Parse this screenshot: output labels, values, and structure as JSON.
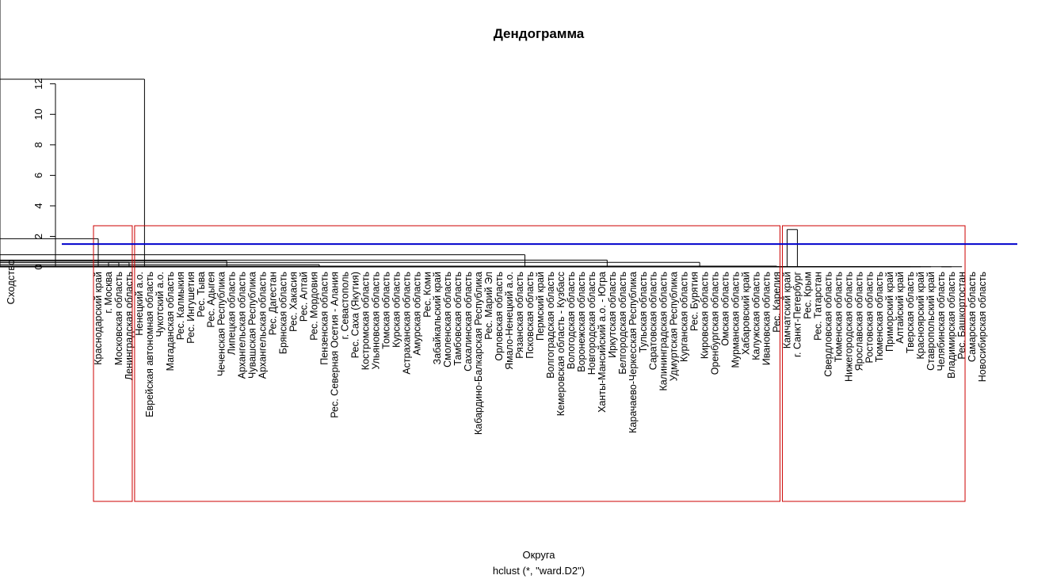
{
  "chart_data": {
    "type": "dendrogram",
    "title": "Дендограмма",
    "xlabel": "Округа",
    "subtitle": "hclust (*, \"ward.D2\")",
    "ylabel": "Сходство",
    "ylim": [
      0,
      13
    ],
    "yticks": [
      0,
      2,
      4,
      6,
      8,
      10,
      12
    ],
    "cut_height": 1.5,
    "cut_line_color": "#0000cc",
    "cluster_box_color": "#cc0000",
    "clusters": [
      {
        "first": 0,
        "last": 3
      },
      {
        "first": 4,
        "last": 66
      },
      {
        "first": 67,
        "last": 84
      }
    ],
    "leaves": [
      "Краснодарский край",
      "г. Москва",
      "Московская область",
      "Ленинградская область",
      "Ненецкий а.о.",
      "Еврейская автономная область",
      "Чукотский а.о.",
      "Магаданская область",
      "Рес. Калмыкия",
      "Рес. Ингушетия",
      "Рес. Тыва",
      "Рес. Адыгея",
      "Чеченская Республика",
      "Липецкая область",
      "Архангельская область",
      "Чувашская Республика",
      "Архангельская область",
      "Рес. Дагестан",
      "Брянская область",
      "Рес. Хакасия",
      "Рес. Алтай",
      "Рес. Мордовия",
      "Пензенская область",
      "Рес. Северная Осетия - Алания",
      "г. Севастополь",
      "Рес. Саха (Якутия)",
      "Костромская область",
      "Ульяновская область",
      "Томская область",
      "Курская область",
      "Астраханская область",
      "Амурская область",
      "Рес. Коми",
      "Забайкальский край",
      "Смоленская область",
      "Тамбовская область",
      "Сахалинская область",
      "Кабардино-Балкарская Республика",
      "Рес. Марий Эл",
      "Орловская область",
      "Ямало-Ненецкий а.о.",
      "Рязанская область",
      "Псковская область",
      "Пермский край",
      "Волгоградская область",
      "Кемеровская область - Кузбасс",
      "Вологодская область",
      "Воронежская область",
      "Новгородская область",
      "Ханты-Мансийский а.о. - Югра",
      "Иркутская область",
      "Белгородская область",
      "Карачаево-Черкесская Республика",
      "Тульская область",
      "Саратовская область",
      "Калининградская область",
      "Удмуртская Республика",
      "Курганская область",
      "Рес. Бурятия",
      "Кировская область",
      "Оренбургская область",
      "Омская область",
      "Мурманская область",
      "Хабаровский край",
      "Калужская область",
      "Ивановская область",
      "Рес. Карелия",
      "Камчатский край",
      "г. Санкт-Петербург",
      "Рес. Крым",
      "Рес. Татарстан",
      "Свердловская область",
      "Тюменская область",
      "Нижегородская область",
      "Ярославская область",
      "Ростовская область",
      "Тюменская область",
      "Приморский край",
      "Алтайский край",
      "Тверская область",
      "Красноярский край",
      "Ставропольский край",
      "Челябинская область",
      "Владимирская область",
      "Рес. Башкортостан",
      "Самарская область",
      "Новосибирская область"
    ],
    "merges": [
      [
        1,
        2,
        0.3
      ],
      [
        3,
        88,
        0.3
      ],
      [
        0,
        89,
        1.85
      ],
      [
        4,
        5,
        0.01
      ],
      [
        91,
        6,
        0.01
      ],
      [
        92,
        7,
        0.01
      ],
      [
        93,
        8,
        0.01
      ],
      [
        94,
        9,
        0.01
      ],
      [
        95,
        10,
        0.01
      ],
      [
        96,
        11,
        0.01
      ],
      [
        12,
        13,
        0.01
      ],
      [
        98,
        14,
        0.01
      ],
      [
        99,
        15,
        0.01
      ],
      [
        100,
        16,
        0.01
      ],
      [
        101,
        17,
        0.01
      ],
      [
        102,
        18,
        0.01
      ],
      [
        103,
        19,
        0.01
      ],
      [
        104,
        20,
        0.01
      ],
      [
        21,
        22,
        0.01
      ],
      [
        106,
        23,
        0.01
      ],
      [
        107,
        24,
        0.05
      ],
      [
        108,
        25,
        0.05
      ],
      [
        109,
        26,
        0.05
      ],
      [
        110,
        27,
        0.05
      ],
      [
        111,
        28,
        0.05
      ],
      [
        112,
        29,
        0.05
      ],
      [
        113,
        30,
        0.05
      ],
      [
        114,
        31,
        0.05
      ],
      [
        115,
        32,
        0.05
      ],
      [
        116,
        33,
        0.05
      ],
      [
        117,
        34,
        0.05
      ],
      [
        118,
        35,
        0.05
      ],
      [
        119,
        36,
        0.05
      ],
      [
        120,
        37,
        0.05
      ],
      [
        121,
        38,
        0.05
      ],
      [
        122,
        39,
        0.05
      ],
      [
        123,
        40,
        0.05
      ],
      [
        105,
        124,
        0.15
      ],
      [
        97,
        125,
        0.4
      ],
      [
        41,
        42,
        0.01
      ],
      [
        127,
        43,
        0.01
      ],
      [
        128,
        44,
        0.05
      ],
      [
        129,
        45,
        0.05
      ],
      [
        130,
        46,
        0.05
      ],
      [
        131,
        47,
        0.05
      ],
      [
        132,
        48,
        0.05
      ],
      [
        49,
        50,
        0.01
      ],
      [
        134,
        51,
        0.01
      ],
      [
        135,
        52,
        0.01
      ],
      [
        136,
        53,
        0.01
      ],
      [
        137,
        54,
        0.01
      ],
      [
        138,
        55,
        0.01
      ],
      [
        139,
        56,
        0.01
      ],
      [
        140,
        57,
        0.01
      ],
      [
        58,
        59,
        0.01
      ],
      [
        142,
        60,
        0.01
      ],
      [
        143,
        61,
        0.05
      ],
      [
        144,
        62,
        0.05
      ],
      [
        145,
        63,
        0.05
      ],
      [
        146,
        64,
        0.05
      ],
      [
        147,
        65,
        0.05
      ],
      [
        148,
        66,
        0.05
      ],
      [
        141,
        149,
        0.3
      ],
      [
        133,
        150,
        0.45
      ],
      [
        151,
        152,
        0.8
      ],
      [
        126,
        152,
        0.8
      ],
      [
        67,
        68,
        2.45
      ],
      [
        69,
        70,
        0.01
      ],
      [
        156,
        71,
        0.01
      ],
      [
        157,
        72,
        0.01
      ],
      [
        73,
        74,
        0.01
      ],
      [
        159,
        75,
        0.01
      ],
      [
        160,
        76,
        0.01
      ],
      [
        77,
        78,
        0.01
      ],
      [
        162,
        79,
        0.01
      ],
      [
        163,
        80,
        0.01
      ],
      [
        164,
        81,
        0.01
      ],
      [
        82,
        83,
        0.01
      ],
      [
        166,
        84,
        0.01
      ],
      [
        158,
        161,
        0.2
      ],
      [
        165,
        167,
        0.4
      ],
      [
        168,
        169,
        0.45
      ],
      [
        170,
        155,
        1.15
      ],
      [
        171,
        155,
        1.15
      ]
    ]
  }
}
